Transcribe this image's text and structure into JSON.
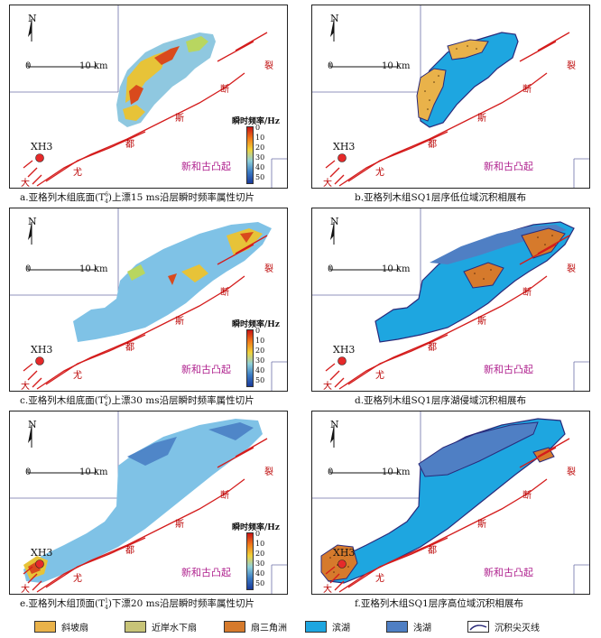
{
  "panels": {
    "a": {
      "caption": "a.亚格列木组底面(T",
      "caption_sup": "6",
      "caption_sub": "4",
      "caption_rest": ")上漂15 ms沿层瞬时频率属性切片",
      "colorbar_title": "瞬时频率/Hz"
    },
    "b": {
      "caption": "b.亚格列木组SQ1层序低位域沉积相展布"
    },
    "c": {
      "caption": "c.亚格列木组底面(T",
      "caption_sup": "6",
      "caption_sub": "4",
      "caption_rest": ")上漂30 ms沿层瞬时频率属性切片",
      "colorbar_title": "瞬时频率/Hz"
    },
    "d": {
      "caption": "d.亚格列木组SQ1层序湖侵域沉积相展布"
    },
    "e": {
      "caption": "e.亚格列木组顶面(T",
      "caption_sup": "1",
      "caption_sub": "4",
      "caption_rest": ")下漂20 ms沿层瞬时频率属性切片",
      "colorbar_title": "瞬时频率/Hz"
    },
    "f": {
      "caption": "f.亚格列木组SQ1层序高位域沉积相展布"
    }
  },
  "map_labels": {
    "north": "N",
    "scale_start": "0",
    "scale_end": "10 km",
    "well": "XH3",
    "fault_chars": [
      "大",
      "尤",
      "都",
      "斯",
      "断",
      "裂"
    ],
    "uplift": "新和古凸起"
  },
  "colorbar_ticks": [
    "0",
    "10",
    "20",
    "30",
    "40",
    "50"
  ],
  "legend": [
    {
      "label": "斜坡扇",
      "color": "#e9b24a"
    },
    {
      "label": "近岸水下扇",
      "color": "#c8c478"
    },
    {
      "label": "扇三角洲",
      "color": "#d67a2c"
    },
    {
      "label": "滨湖",
      "color": "#1ea6e0"
    },
    {
      "label": "浅湖",
      "color": "#4f7fc4"
    },
    {
      "label": "沉积尖灭线",
      "color": "#2a2a7a"
    }
  ]
}
